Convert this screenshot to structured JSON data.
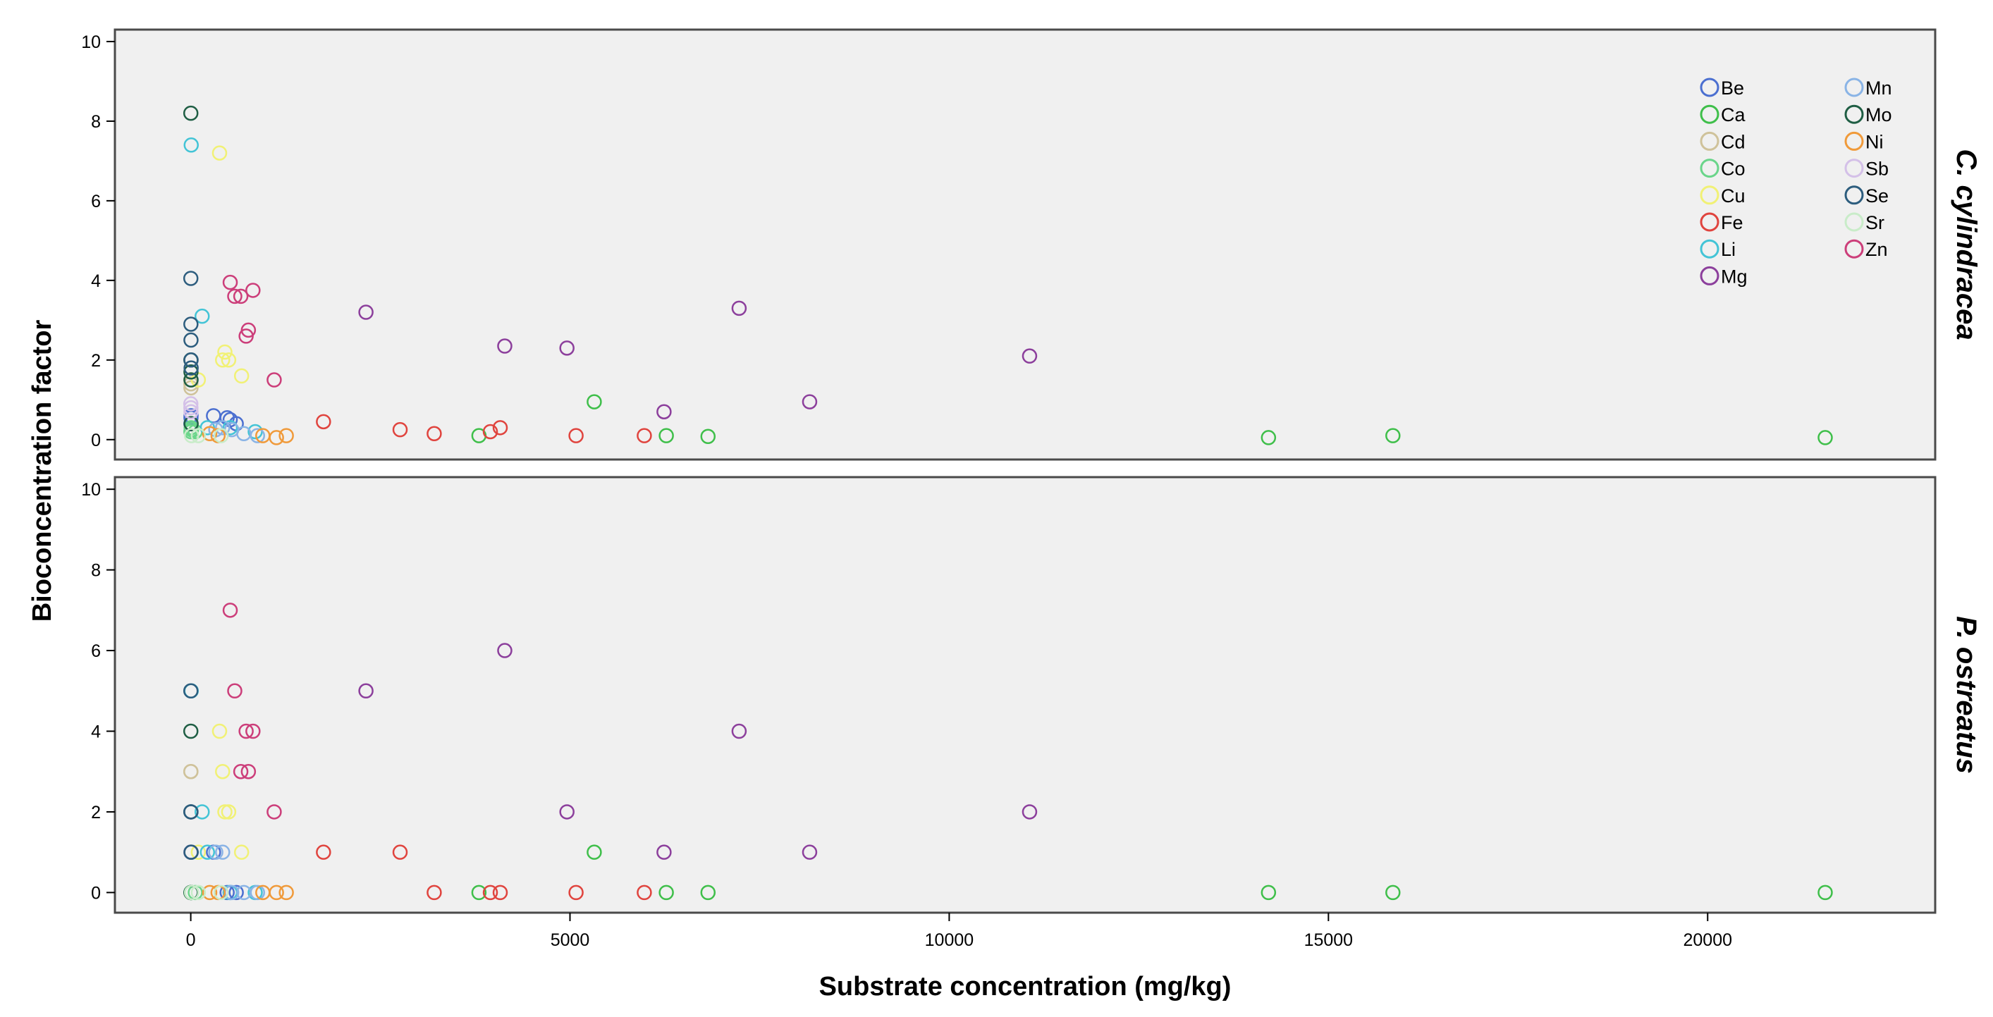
{
  "chart_data": {
    "type": "scatter",
    "xlabel": "Substrate concentration (mg/kg)",
    "ylabel": "Bioconcentration factor",
    "xlim": [
      -1000,
      23000
    ],
    "ylim": [
      -0.5,
      10.3
    ],
    "x_ticks": [
      0,
      5000,
      10000,
      15000,
      20000
    ],
    "y_ticks": [
      0,
      2,
      4,
      6,
      8,
      10
    ],
    "grid": false,
    "legend_position": "top-right",
    "legend_columns": 2,
    "facets": [
      "C. cylindracea",
      "P. ostreatus"
    ],
    "series": [
      {
        "name": "Be",
        "color": "#4b6fd0",
        "points": [
          [
            2,
            0.4,
            1.0
          ],
          [
            3,
            0.55,
            1.0
          ],
          [
            4,
            0.6,
            1.0
          ],
          [
            300,
            0.6,
            1.0
          ],
          [
            480,
            0.55,
            0.0
          ],
          [
            520,
            0.5,
            0.0
          ],
          [
            600,
            0.4,
            0.0
          ]
        ]
      },
      {
        "name": "Ca",
        "color": "#3fbf4a",
        "points": [
          [
            3800,
            0.1,
            0.0
          ],
          [
            5320,
            0.95,
            1.0
          ],
          [
            6270,
            0.1,
            0.0
          ],
          [
            6820,
            0.08,
            0.0
          ],
          [
            14210,
            0.05,
            0.0
          ],
          [
            15850,
            0.1,
            0.0
          ],
          [
            21550,
            0.05,
            0.0
          ]
        ]
      },
      {
        "name": "Cd",
        "color": "#cfc29a",
        "points": [
          [
            1,
            1.5,
            3.0
          ],
          [
            2,
            1.4,
            3.0
          ],
          [
            3,
            1.3,
            1.0
          ]
        ]
      },
      {
        "name": "Co",
        "color": "#6ad58a",
        "points": [
          [
            2,
            0.2,
            0.0
          ],
          [
            5,
            0.3,
            0.0
          ],
          [
            10,
            0.25,
            0.0
          ],
          [
            60,
            0.2,
            0.0
          ]
        ]
      },
      {
        "name": "Cu",
        "color": "#f1f175",
        "points": [
          [
            380,
            7.2,
            4.0
          ],
          [
            420,
            2.0,
            3.0
          ],
          [
            450,
            2.2,
            2.0
          ],
          [
            500,
            2.0,
            2.0
          ],
          [
            670,
            1.6,
            1.0
          ],
          [
            100,
            1.5,
            1.0
          ]
        ]
      },
      {
        "name": "Fe",
        "color": "#e0443e",
        "points": [
          [
            1750,
            0.45,
            1.0
          ],
          [
            2760,
            0.25,
            1.0
          ],
          [
            3210,
            0.15,
            0.0
          ],
          [
            3950,
            0.2,
            0.0
          ],
          [
            4080,
            0.3,
            0.0
          ],
          [
            5080,
            0.1,
            0.0
          ],
          [
            5980,
            0.1,
            0.0
          ]
        ]
      },
      {
        "name": "Li",
        "color": "#43c4d6",
        "points": [
          [
            6,
            7.4,
            5.0
          ],
          [
            150,
            3.1,
            2.0
          ],
          [
            220,
            0.3,
            1.0
          ],
          [
            520,
            0.3,
            0.0
          ],
          [
            850,
            0.2,
            0.0
          ]
        ]
      },
      {
        "name": "Mg",
        "color": "#8c3f9c",
        "points": [
          [
            2310,
            3.2,
            5.0
          ],
          [
            4140,
            2.35,
            6.0
          ],
          [
            4960,
            2.3,
            2.0
          ],
          [
            6240,
            0.7,
            1.0
          ],
          [
            7230,
            3.3,
            4.0
          ],
          [
            8160,
            0.95,
            1.0
          ],
          [
            11060,
            2.1,
            2.0
          ]
        ]
      },
      {
        "name": "Mn",
        "color": "#8ab4e6",
        "points": [
          [
            330,
            0.25,
            1.0
          ],
          [
            420,
            0.3,
            1.0
          ],
          [
            540,
            0.25,
            0.0
          ],
          [
            700,
            0.15,
            0.0
          ],
          [
            880,
            0.1,
            0.0
          ]
        ]
      },
      {
        "name": "Mo",
        "color": "#1f5e44",
        "points": [
          [
            1,
            8.2,
            4.0
          ],
          [
            2,
            2.0,
            2.0
          ],
          [
            3,
            1.7,
            0.0
          ],
          [
            4,
            1.5,
            0.0
          ],
          [
            5,
            0.4,
            0.0
          ]
        ]
      },
      {
        "name": "Ni",
        "color": "#f09a3a",
        "points": [
          [
            250,
            0.15,
            0.0
          ],
          [
            360,
            0.1,
            0.0
          ],
          [
            950,
            0.1,
            0.0
          ],
          [
            1130,
            0.05,
            0.0
          ],
          [
            1260,
            0.1,
            0.0
          ]
        ]
      },
      {
        "name": "Sb",
        "color": "#d4c0e8",
        "points": [
          [
            1,
            0.9,
            1.0
          ],
          [
            2,
            0.8,
            1.0
          ],
          [
            3,
            0.7,
            1.0
          ]
        ]
      },
      {
        "name": "Se",
        "color": "#2d5d7e",
        "points": [
          [
            1,
            4.05,
            5.0
          ],
          [
            2,
            2.9,
            2.0
          ],
          [
            3,
            2.5,
            2.0
          ],
          [
            4,
            2.0,
            1.0
          ],
          [
            5,
            1.8,
            1.0
          ]
        ]
      },
      {
        "name": "Sr",
        "color": "#c9ecc9",
        "points": [
          [
            10,
            0.1,
            0.0
          ],
          [
            100,
            0.1,
            0.0
          ],
          [
            400,
            0.1,
            0.0
          ]
        ]
      },
      {
        "name": "Zn",
        "color": "#cc3e7a",
        "points": [
          [
            520,
            3.95,
            7.0
          ],
          [
            580,
            3.6,
            5.0
          ],
          [
            660,
            3.6,
            3.0
          ],
          [
            730,
            2.6,
            4.0
          ],
          [
            760,
            2.75,
            3.0
          ],
          [
            820,
            3.75,
            4.0
          ],
          [
            1100,
            1.5,
            2.0
          ]
        ]
      }
    ]
  }
}
